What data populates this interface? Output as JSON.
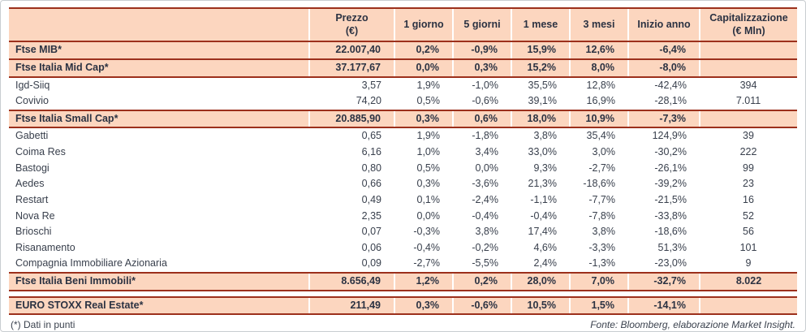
{
  "table": {
    "columns": [
      "",
      "Prezzo\n(€)",
      "1 giorno",
      "5 giorni",
      "1 mese",
      "3 mesi",
      "Inizio anno",
      "Capitalizzazione\n(€ Mln)"
    ],
    "rows": [
      {
        "type": "index",
        "name": "Ftse MIB*",
        "values": [
          "22.007,40",
          "0,2%",
          "-0,9%",
          "15,9%",
          "12,6%",
          "-6,4%",
          ""
        ]
      },
      {
        "type": "index",
        "name": "Ftse Italia Mid Cap*",
        "values": [
          "37.177,67",
          "0,0%",
          "0,3%",
          "15,2%",
          "8,0%",
          "-8,0%",
          ""
        ]
      },
      {
        "type": "stock",
        "name": "Igd-Siiq",
        "values": [
          "3,57",
          "1,9%",
          "-1,0%",
          "35,5%",
          "12,8%",
          "-42,4%",
          "394"
        ]
      },
      {
        "type": "stock",
        "name": "Covivio",
        "values": [
          "74,20",
          "0,5%",
          "-0,6%",
          "39,1%",
          "16,9%",
          "-28,1%",
          "7.011"
        ]
      },
      {
        "type": "index",
        "name": "Ftse Italia Small Cap*",
        "values": [
          "20.885,90",
          "0,3%",
          "0,6%",
          "18,0%",
          "10,9%",
          "-7,3%",
          ""
        ]
      },
      {
        "type": "stock",
        "name": "Gabetti",
        "values": [
          "0,65",
          "1,9%",
          "-1,8%",
          "3,8%",
          "35,4%",
          "124,9%",
          "39"
        ]
      },
      {
        "type": "stock",
        "name": "Coima Res",
        "values": [
          "6,16",
          "1,0%",
          "3,4%",
          "33,0%",
          "3,0%",
          "-30,2%",
          "222"
        ]
      },
      {
        "type": "stock",
        "name": "Bastogi",
        "values": [
          "0,80",
          "0,5%",
          "0,0%",
          "9,3%",
          "-2,7%",
          "-26,1%",
          "99"
        ]
      },
      {
        "type": "stock",
        "name": "Aedes",
        "values": [
          "0,66",
          "0,3%",
          "-3,6%",
          "21,3%",
          "-18,6%",
          "-39,2%",
          "23"
        ]
      },
      {
        "type": "stock",
        "name": "Restart",
        "values": [
          "0,49",
          "0,1%",
          "-2,4%",
          "-1,1%",
          "-7,7%",
          "-21,5%",
          "16"
        ]
      },
      {
        "type": "stock",
        "name": "Nova Re",
        "values": [
          "2,35",
          "0,0%",
          "-0,4%",
          "-0,4%",
          "-7,8%",
          "-33,8%",
          "52"
        ]
      },
      {
        "type": "stock",
        "name": "Brioschi",
        "values": [
          "0,07",
          "-0,3%",
          "3,8%",
          "17,4%",
          "3,8%",
          "-18,6%",
          "56"
        ]
      },
      {
        "type": "stock",
        "name": "Risanamento",
        "values": [
          "0,06",
          "-0,4%",
          "-0,2%",
          "4,6%",
          "-3,3%",
          "51,3%",
          "101"
        ]
      },
      {
        "type": "stock",
        "name": "Compagnia Immobiliare Azionaria",
        "values": [
          "0,09",
          "-2,7%",
          "-5,5%",
          "2,4%",
          "-1,3%",
          "-23,0%",
          "9"
        ]
      },
      {
        "type": "index",
        "name": "Ftse Italia Beni Immobili*",
        "values": [
          "8.656,49",
          "1,2%",
          "0,2%",
          "28,0%",
          "7,0%",
          "-32,7%",
          "8.022"
        ]
      },
      {
        "type": "spacer"
      },
      {
        "type": "index",
        "name": "EURO STOXX Real Estate*",
        "values": [
          "211,49",
          "0,3%",
          "-0,6%",
          "10,5%",
          "1,5%",
          "-14,1%",
          ""
        ]
      }
    ]
  },
  "footer": {
    "note": "(*) Dati in punti",
    "source": "Fonte: Bloomberg, elaborazione Market Insight."
  },
  "colors": {
    "header_bg": "#fcd6bf",
    "index_row_bg": "#fcd6bf",
    "rule_line": "#9c301c",
    "text": "#39404d",
    "bold_text": "#2b3242"
  }
}
